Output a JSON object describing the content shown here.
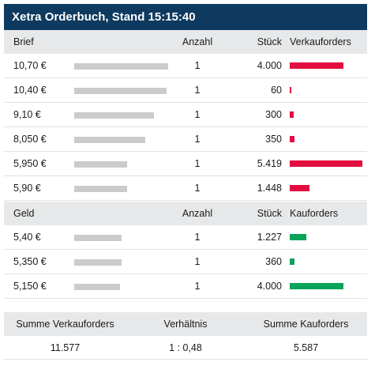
{
  "title": "Xetra Orderbuch, Stand 15:15:40",
  "colors": {
    "header_bg": "#0f3a5f",
    "sell": "#e30d3f",
    "buy": "#0aa35a",
    "grey_bar": "#cbcbcb"
  },
  "ask": {
    "header": {
      "side": "Brief",
      "anzahl": "Anzahl",
      "stueck": "Stück",
      "orders": "Verkauforders"
    },
    "rows": [
      {
        "price": "10,70 €",
        "anzahl": "1",
        "stueck": "4.000",
        "depth": 1.0,
        "qty": 4000
      },
      {
        "price": "10,40 €",
        "anzahl": "1",
        "stueck": "60",
        "depth": 0.98,
        "qty": 60
      },
      {
        "price": "9,10 €",
        "anzahl": "1",
        "stueck": "300",
        "depth": 0.85,
        "qty": 300
      },
      {
        "price": "8,050 €",
        "anzahl": "1",
        "stueck": "350",
        "depth": 0.76,
        "qty": 350
      },
      {
        "price": "5,950 €",
        "anzahl": "1",
        "stueck": "5.419",
        "depth": 0.56,
        "qty": 5419
      },
      {
        "price": "5,90 €",
        "anzahl": "1",
        "stueck": "1.448",
        "depth": 0.56,
        "qty": 1448
      }
    ]
  },
  "bid": {
    "header": {
      "side": "Geld",
      "anzahl": "Anzahl",
      "stueck": "Stück",
      "orders": "Kauforders"
    },
    "rows": [
      {
        "price": "5,40 €",
        "anzahl": "1",
        "stueck": "1.227",
        "depth": 0.5,
        "qty": 1227
      },
      {
        "price": "5,350 €",
        "anzahl": "1",
        "stueck": "360",
        "depth": 0.5,
        "qty": 360
      },
      {
        "price": "5,150 €",
        "anzahl": "1",
        "stueck": "4.000",
        "depth": 0.49,
        "qty": 4000
      }
    ]
  },
  "summary": {
    "labels": {
      "sell": "Summe Verkauforders",
      "ratio": "Verhältnis",
      "buy": "Summe Kauforders"
    },
    "values": {
      "sell": "11.577",
      "ratio": "1 : 0,48",
      "buy": "5.587"
    }
  }
}
